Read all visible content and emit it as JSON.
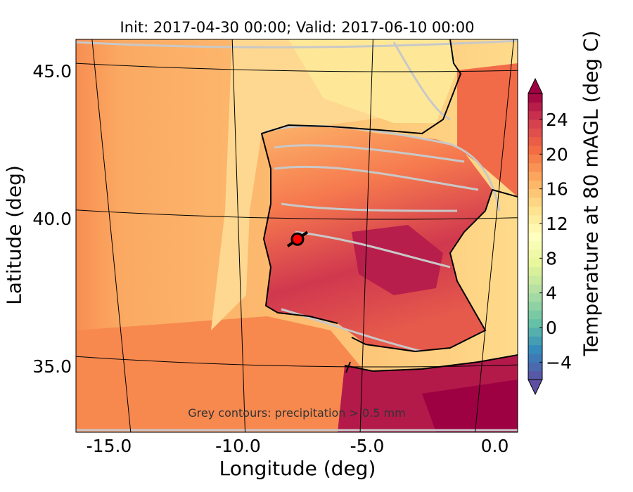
{
  "chart_data": {
    "type": "heatmap",
    "title": "Init: 2017-04-30 00:00; Valid: 2017-06-10 00:00",
    "xlabel": "Longitude (deg)",
    "ylabel": "Latitude (deg)",
    "xticks": [
      -15.0,
      -10.0,
      -5.0,
      0.0
    ],
    "xtick_labels": [
      "-15.0",
      "-10.0",
      "-5.0",
      "0.0"
    ],
    "yticks": [
      35.0,
      40.0,
      45.0
    ],
    "ytick_labels": [
      "35.0",
      "40.0",
      "45.0"
    ],
    "xlim": [
      -16.3,
      0.5
    ],
    "ylim": [
      32.6,
      46.2
    ],
    "annotation": "Grey contours: precipitation > 0.5 mm",
    "marker": {
      "lon": -7.7,
      "lat": 39.3,
      "color": "#ff0000"
    },
    "colorbar": {
      "label": "Temperature at 80 mAGL (deg C)",
      "range": [
        -6,
        27
      ],
      "extend": "both",
      "colormap": "Spectral_r",
      "ticks": [
        -4,
        0,
        4,
        8,
        12,
        16,
        20,
        24
      ],
      "tick_labels": [
        "−4",
        "0",
        "4",
        "8",
        "12",
        "16",
        "20",
        "24"
      ]
    },
    "colors": {
      "ocean_west": "#f9a35e",
      "ocean_near_coast": "#fdcf7e",
      "france": "#fee898",
      "iberia_north": "#fba962",
      "iberia_south": "#d0384e",
      "africa": "#a50f49",
      "precip_contour": "#c8c8c8"
    }
  }
}
